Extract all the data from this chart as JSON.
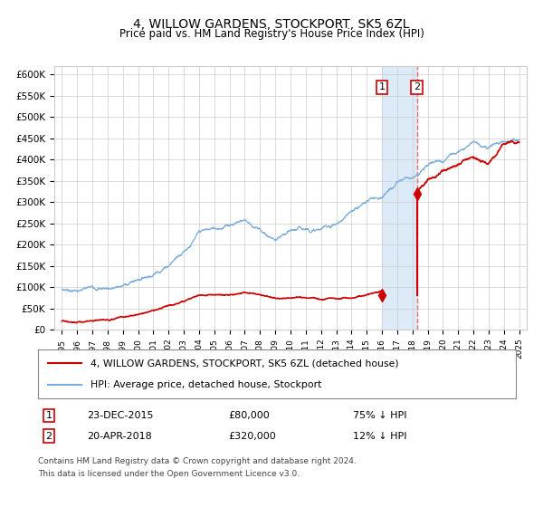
{
  "title": "4, WILLOW GARDENS, STOCKPORT, SK5 6ZL",
  "subtitle": "Price paid vs. HM Land Registry's House Price Index (HPI)",
  "legend_line1": "4, WILLOW GARDENS, STOCKPORT, SK5 6ZL (detached house)",
  "legend_line2": "HPI: Average price, detached house, Stockport",
  "transaction1_date": "23-DEC-2015",
  "transaction1_price": 80000,
  "transaction1_label": "75% ↓ HPI",
  "transaction2_date": "20-APR-2018",
  "transaction2_price": 320000,
  "transaction2_label": "12% ↓ HPI",
  "copyright_text": "Contains HM Land Registry data © Crown copyright and database right 2024.\nThis data is licensed under the Open Government Licence v3.0.",
  "hpi_color": "#7aaddc",
  "price_color": "#cc0000",
  "background_color": "#ffffff",
  "grid_color": "#cccccc",
  "shade_color": "#ddeaf8",
  "ylim": [
    0,
    620000
  ],
  "yticks": [
    0,
    50000,
    100000,
    150000,
    200000,
    250000,
    300000,
    350000,
    400000,
    450000,
    500000,
    550000,
    600000
  ],
  "year_start": 1995,
  "year_end": 2025,
  "transaction1_year": 2016.0,
  "transaction2_year": 2018.3,
  "hpi_key_years": [
    1995,
    1996,
    1997,
    1998,
    1999,
    2000,
    2001,
    2002,
    2003,
    2004,
    2005,
    2006,
    2007,
    2008,
    2009,
    2010,
    2011,
    2012,
    2013,
    2014,
    2015,
    2016,
    2017,
    2018,
    2019,
    2020,
    2021,
    2022,
    2023,
    2024,
    2025
  ],
  "hpi_key_vals": [
    93000,
    95000,
    98000,
    102000,
    108000,
    125000,
    145000,
    175000,
    215000,
    258000,
    262000,
    278000,
    295000,
    272000,
    248000,
    255000,
    262000,
    263000,
    278000,
    300000,
    328000,
    345000,
    368000,
    385000,
    415000,
    428000,
    455000,
    490000,
    478000,
    500000,
    505000
  ],
  "prop_key_years": [
    1995,
    1996,
    1997,
    1998,
    1999,
    2000,
    2001,
    2002,
    2003,
    2004,
    2005,
    2006,
    2007,
    2008,
    2009,
    2010,
    2011,
    2012,
    2013,
    2014,
    2015,
    2016
  ],
  "prop_key_vals": [
    20000,
    21000,
    22000,
    25000,
    30000,
    35000,
    42000,
    50000,
    58000,
    68000,
    70000,
    72000,
    78000,
    73000,
    68000,
    70000,
    72000,
    70000,
    73000,
    78000,
    83000,
    96000
  ],
  "prop_after_key_years": [
    2018.3,
    2019,
    2020,
    2021,
    2022,
    2023,
    2024,
    2025
  ],
  "prop_after_key_vals": [
    320000,
    355000,
    365000,
    380000,
    400000,
    380000,
    430000,
    440000
  ]
}
